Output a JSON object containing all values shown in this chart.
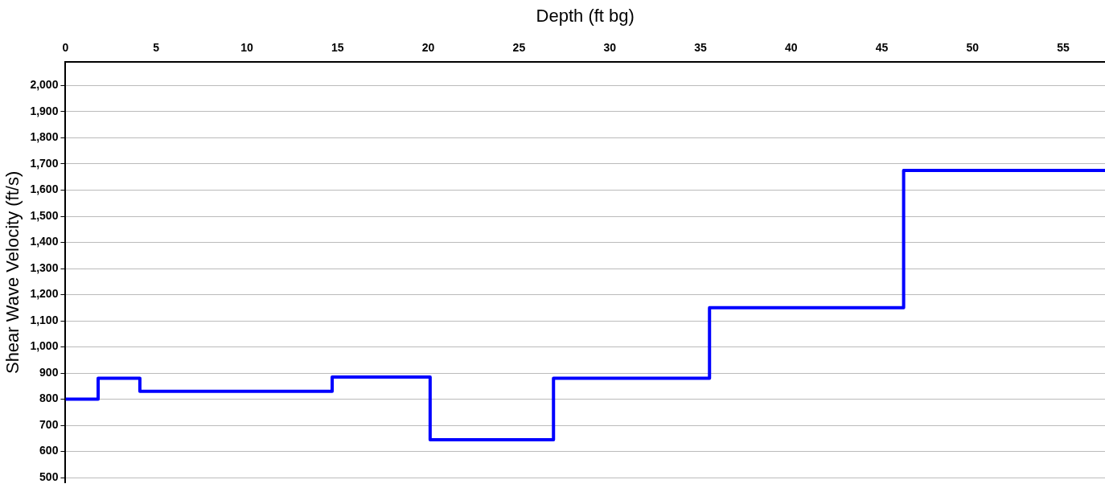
{
  "chart_data": {
    "type": "step",
    "xlabel": "Depth (ft bg)",
    "ylabel": "Shear Wave Velocity (ft/s)",
    "x": [
      0,
      1.8,
      4.1,
      14.7,
      20.1,
      26.9,
      35.5,
      46.2,
      57.3
    ],
    "series": [
      {
        "color": "#0000ff",
        "values": [
          800,
          880,
          830,
          885,
          645,
          880,
          1150,
          1675,
          1675
        ]
      }
    ],
    "xlim": [
      0,
      57.3
    ],
    "xticks": [
      0,
      5,
      10,
      15,
      20,
      25,
      30,
      35,
      40,
      45,
      50,
      55
    ],
    "ylim": [
      480,
      2090
    ],
    "yticks": [
      500,
      600,
      700,
      800,
      900,
      {
        "value": 1000,
        "label": "1,000"
      },
      {
        "value": 1100,
        "label": "1,100"
      },
      {
        "value": 1200,
        "label": "1,200"
      },
      {
        "value": 1300,
        "label": "1,300"
      },
      {
        "value": 1400,
        "label": "1,400"
      },
      {
        "value": 1500,
        "label": "1,500"
      },
      {
        "value": 1600,
        "label": "1,600"
      },
      {
        "value": 1700,
        "label": "1,700"
      },
      {
        "value": 1800,
        "label": "1,800"
      },
      {
        "value": 1900,
        "label": "1,900"
      },
      {
        "value": 2000,
        "label": "2,000"
      }
    ],
    "grid": "y",
    "legend": false,
    "marker": "none",
    "line_style": "solid"
  }
}
